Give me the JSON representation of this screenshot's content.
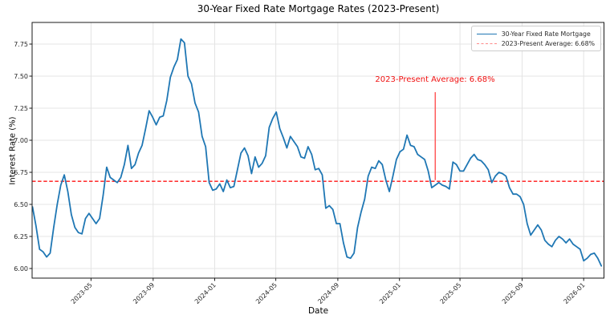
{
  "chart_data": {
    "type": "line",
    "title": "30-Year Fixed Rate Mortgage Rates (2023-Present)",
    "xlabel": "Date",
    "ylabel": "Interest Rate (%)",
    "grid": true,
    "x_tick_labels": [
      "2023-05",
      "2023-09",
      "2024-01",
      "2024-05",
      "2024-09",
      "2025-01",
      "2025-05",
      "2025-09",
      "2026-01"
    ],
    "y_tick_labels": [
      "6.00",
      "6.25",
      "6.50",
      "6.75",
      "7.00",
      "7.25",
      "7.50",
      "7.75"
    ],
    "ylim": [
      5.93,
      7.92
    ],
    "xlim_dates": [
      "2023-01-05",
      "2026-02-05"
    ],
    "x_start_date": "2023-01-05",
    "x_interval_days": 7,
    "series": [
      {
        "name": "30-Year Fixed Rate Mortgage",
        "color": "#1f77b4",
        "values": [
          6.48,
          6.33,
          6.15,
          6.13,
          6.09,
          6.12,
          6.32,
          6.5,
          6.65,
          6.73,
          6.6,
          6.42,
          6.32,
          6.28,
          6.27,
          6.39,
          6.43,
          6.39,
          6.35,
          6.39,
          6.57,
          6.79,
          6.71,
          6.69,
          6.67,
          6.71,
          6.81,
          6.96,
          6.78,
          6.81,
          6.9,
          6.96,
          7.09,
          7.23,
          7.18,
          7.12,
          7.18,
          7.19,
          7.31,
          7.49,
          7.57,
          7.63,
          7.79,
          7.76,
          7.5,
          7.44,
          7.29,
          7.22,
          7.03,
          6.95,
          6.67,
          6.61,
          6.62,
          6.66,
          6.6,
          6.69,
          6.63,
          6.64,
          6.77,
          6.9,
          6.94,
          6.88,
          6.74,
          6.87,
          6.79,
          6.82,
          6.88,
          7.1,
          7.17,
          7.22,
          7.09,
          7.02,
          6.94,
          7.03,
          6.99,
          6.95,
          6.87,
          6.86,
          6.95,
          6.89,
          6.77,
          6.78,
          6.73,
          6.47,
          6.49,
          6.46,
          6.35,
          6.35,
          6.2,
          6.09,
          6.08,
          6.12,
          6.32,
          6.44,
          6.54,
          6.72,
          6.79,
          6.78,
          6.84,
          6.81,
          6.69,
          6.6,
          6.72,
          6.85,
          6.91,
          6.93,
          7.04,
          6.96,
          6.95,
          6.89,
          6.87,
          6.85,
          6.76,
          6.63,
          6.65,
          6.67,
          6.65,
          6.64,
          6.62,
          6.83,
          6.81,
          6.76,
          6.76,
          6.81,
          6.86,
          6.89,
          6.85,
          6.84,
          6.81,
          6.77,
          6.67,
          6.72,
          6.75,
          6.74,
          6.72,
          6.63,
          6.58,
          6.58,
          6.56,
          6.5,
          6.35,
          6.26,
          6.3,
          6.34,
          6.3,
          6.22,
          6.19,
          6.17,
          6.22,
          6.25,
          6.23,
          6.2,
          6.23,
          6.19,
          6.17,
          6.15,
          6.06,
          6.08,
          6.11,
          6.12,
          6.08,
          6.02
        ]
      }
    ],
    "average_line": {
      "value": 6.68,
      "style": "dashed",
      "color": "#ff0000",
      "label": "2023-Present Average: 6.68%"
    },
    "annotation": {
      "text": "2023-Present Average: 6.68%",
      "color": "#f01010",
      "x_date": "2025-03-13",
      "points_to_value": 6.68
    },
    "legend": {
      "position": "upper right",
      "entries": [
        "30-Year Fixed Rate Mortgage",
        "2023-Present Average: 6.68%"
      ]
    }
  }
}
